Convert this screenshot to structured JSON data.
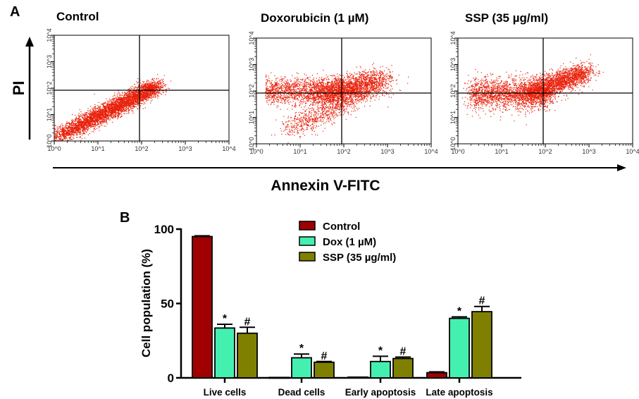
{
  "panel_a": {
    "letter": "A",
    "y_label": "PI",
    "x_label": "Annexin V-FITC"
  },
  "panel_b": {
    "letter": "B"
  },
  "chart_data": [
    {
      "type": "scatter",
      "title": "Control",
      "x_scale": "log",
      "y_scale": "log",
      "xlim": [
        1,
        10000
      ],
      "ylim": [
        1,
        10000
      ],
      "x_ticks": [
        "10^0",
        "10^1",
        "10^2",
        "10^3",
        "10^4"
      ],
      "y_ticks": [
        "10^0",
        "10^1",
        "10^2",
        "10^3",
        "10^4"
      ],
      "quadrant_gate": {
        "x": 100,
        "y": 100
      },
      "point_color": "#e8200a",
      "distribution": "diagonal, mostly lower-left quadrant"
    },
    {
      "type": "scatter",
      "title": "Doxorubicin (1 µM)",
      "x_scale": "log",
      "y_scale": "log",
      "xlim": [
        1,
        10000
      ],
      "ylim": [
        1,
        10000
      ],
      "x_ticks": [
        "10^0",
        "10^1",
        "10^2",
        "10^3",
        "10^4"
      ],
      "y_ticks": [
        "10^0",
        "10^1",
        "10^2",
        "10^3",
        "10^4"
      ],
      "quadrant_gate": {
        "x": 100,
        "y": 100
      },
      "point_color": "#e8200a",
      "distribution": "spread into upper-left and upper-right quadrants"
    },
    {
      "type": "scatter",
      "title": "SSP (35 µg/ml)",
      "x_scale": "log",
      "y_scale": "log",
      "xlim": [
        1,
        10000
      ],
      "ylim": [
        1,
        10000
      ],
      "x_ticks": [
        "10^0",
        "10^1",
        "10^2",
        "10^3",
        "10^4"
      ],
      "y_ticks": [
        "10^0",
        "10^1",
        "10^2",
        "10^3",
        "10^4"
      ],
      "quadrant_gate": {
        "x": 100,
        "y": 100
      },
      "point_color": "#e8200a",
      "distribution": "centered near gate, extending to upper-right"
    },
    {
      "type": "bar",
      "ylabel": "Cell population (%)",
      "ylim": [
        0,
        100
      ],
      "y_ticks": [
        0,
        50,
        100
      ],
      "categories": [
        "Live cells",
        "Dead cells",
        "Early apoptosis",
        "Late apoptosis"
      ],
      "legend_placement": "top-center",
      "series": [
        {
          "name": "Control",
          "color": "#a00000",
          "values": [
            95,
            0.3,
            0.5,
            3.5
          ],
          "errors": [
            0.5,
            0,
            0,
            0.5
          ],
          "marks": [
            "",
            "",
            "",
            ""
          ]
        },
        {
          "name": "Dox (1 µM)",
          "color": "#44f0b0",
          "values": [
            33.5,
            13.5,
            11,
            40
          ],
          "errors": [
            2.5,
            2.5,
            3.5,
            1
          ],
          "marks": [
            "*",
            "*",
            "*",
            "*"
          ]
        },
        {
          "name": "SSP (35 µg/ml)",
          "color": "#808000",
          "values": [
            30,
            10.5,
            13,
            44.5
          ],
          "errors": [
            4,
            0.5,
            1,
            3.5
          ],
          "marks": [
            "#",
            "#",
            "#",
            "#"
          ]
        }
      ]
    }
  ]
}
